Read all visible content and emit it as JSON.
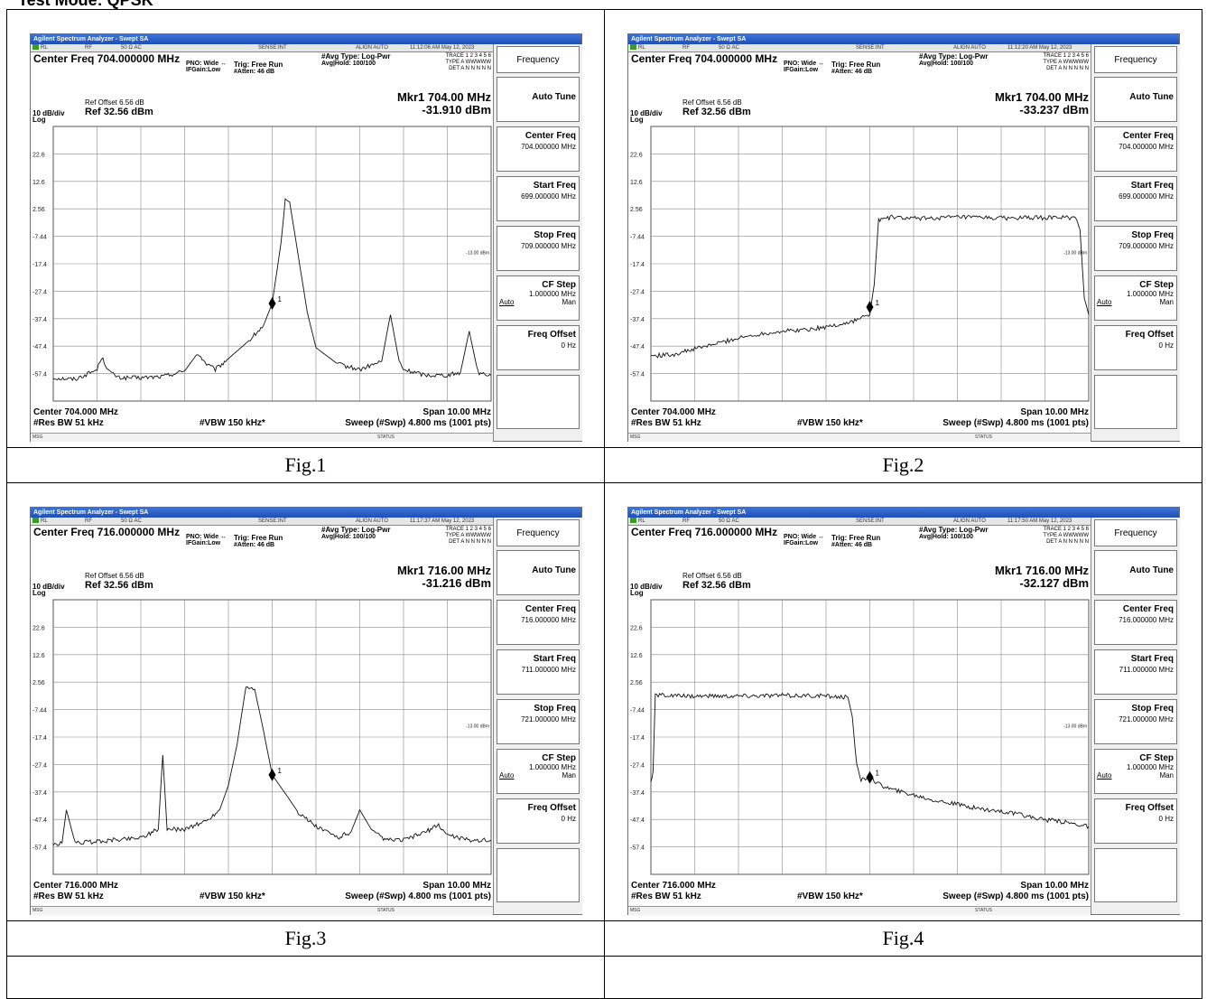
{
  "page": {
    "top_label": "Test Mode: QPSK"
  },
  "common": {
    "app_title": "Agilent Spectrum Analyzer - Swept SA",
    "toolbar": {
      "rl": "RL",
      "rf": "RF",
      "ohm": "50 Ω  AC",
      "sense": "SENSE:INT",
      "align": "ALIGN AUTO"
    },
    "pno": "PNO: Wide ↔",
    "ifgain": "IFGain:Low",
    "trig": "Trig: Free Run",
    "atten": "#Atten: 46 dB",
    "avg_type": "#Avg Type: Log-Pwr",
    "avg_hold": "Avg|Hold: 100/100",
    "trace_line": "TRACE 1 2 3 4 5 6",
    "type_line": "TYPE A WWWWW",
    "det_line": "DET A N N N N N",
    "ref_offset": "Ref Offset 6.56 dB",
    "scale": "10 dB/div",
    "ref_level": "Ref 32.56 dBm",
    "log": "Log",
    "res_bw": "#Res BW 51 kHz",
    "vbw": "#VBW 150 kHz*",
    "span": "Span 10.00 MHz",
    "sweep": "Sweep (#Swp)  4.800 ms (1001 pts)",
    "msg": "MSG",
    "status": "STATUS",
    "limit_label": "-13.00 dBm",
    "softkeys": {
      "menu": "Frequency",
      "auto_tune": "Auto Tune",
      "center_freq": "Center Freq",
      "start_freq": "Start Freq",
      "stop_freq": "Stop Freq",
      "cf_step": "CF Step",
      "cf_step_value": "1.000000 MHz",
      "auto": "Auto",
      "man": "Man",
      "freq_offset": "Freq Offset",
      "freq_offset_value": "0 Hz"
    }
  },
  "chart_data": [
    {
      "type": "line",
      "caption": "Fig.1",
      "timestamp": "11:12:06 AM May 12, 2023",
      "center_freq_header": "Center Freq 704.000000 MHz",
      "marker_freq": "Mkr1 704.00 MHz",
      "marker_level": "-31.910 dBm",
      "marker_label": "1",
      "center_label": "Center 704.000 MHz",
      "center_value": "704.000000 MHz",
      "start_value": "699.000000 MHz",
      "stop_value": "709.000000 MHz",
      "xlim": [
        699,
        709
      ],
      "ylim": [
        -67.44,
        32.56
      ],
      "y_ticks": [
        "22.6",
        "12.6",
        "2.56",
        "-7.44",
        "-17.4",
        "-27.4",
        "-37.4",
        "-47.4",
        "-57.4"
      ],
      "limit_line": -13.0,
      "marker": {
        "x": 704.0,
        "y": -31.91
      },
      "x": [
        699.0,
        699.5,
        700.0,
        700.1,
        700.3,
        700.5,
        701.0,
        701.5,
        702.0,
        702.3,
        702.5,
        702.7,
        703.0,
        703.5,
        703.8,
        704.0,
        704.2,
        704.3,
        704.4,
        704.6,
        704.8,
        705.0,
        705.5,
        706.0,
        706.5,
        706.7,
        706.9,
        707.0,
        707.5,
        708.0,
        708.3,
        708.5,
        708.7,
        709.0
      ],
      "values": [
        -59.0,
        -59.5,
        -56.0,
        -51.5,
        -57.0,
        -59.0,
        -59.0,
        -58.5,
        -56.5,
        -50.0,
        -54.0,
        -56.0,
        -52.0,
        -45.0,
        -40.0,
        -31.9,
        -10.0,
        5.5,
        5.0,
        -15.0,
        -35.0,
        -48.0,
        -54.0,
        -56.0,
        -53.0,
        -36.0,
        -53.0,
        -56.0,
        -58.0,
        -58.0,
        -57.0,
        -42.0,
        -57.0,
        -58.0
      ]
    },
    {
      "type": "line",
      "caption": "Fig.2",
      "timestamp": "11:12:20 AM May 12, 2023",
      "center_freq_header": "Center Freq 704.000000 MHz",
      "marker_freq": "Mkr1 704.00 MHz",
      "marker_level": "-33.237 dBm",
      "marker_label": "1",
      "center_label": "Center 704.000 MHz",
      "center_value": "704.000000 MHz",
      "start_value": "699.000000 MHz",
      "stop_value": "709.000000 MHz",
      "xlim": [
        699,
        709
      ],
      "ylim": [
        -67.44,
        32.56
      ],
      "y_ticks": [
        "22.6",
        "12.6",
        "2.56",
        "-7.44",
        "-17.4",
        "-27.4",
        "-37.4",
        "-47.4",
        "-57.4"
      ],
      "limit_line": -13.0,
      "marker": {
        "x": 704.0,
        "y": -33.24
      },
      "x": [
        699.0,
        699.5,
        700.0,
        700.5,
        701.0,
        701.5,
        702.0,
        702.5,
        703.0,
        703.5,
        704.0,
        704.1,
        704.2,
        704.5,
        705.0,
        706.0,
        707.0,
        708.0,
        708.5,
        708.7,
        708.8,
        708.9,
        709.0
      ],
      "values": [
        -51.0,
        -50.5,
        -48.5,
        -46.5,
        -44.5,
        -43.0,
        -42.0,
        -41.5,
        -40.5,
        -39.0,
        -36.0,
        -25.0,
        -1.5,
        -0.5,
        -1.0,
        -0.5,
        -0.8,
        -0.7,
        -0.5,
        -1.0,
        -5.0,
        -30.0,
        -36.0
      ]
    },
    {
      "type": "line",
      "caption": "Fig.3",
      "timestamp": "11:17:37 AM May 12, 2023",
      "center_freq_header": "Center Freq 716.000000 MHz",
      "marker_freq": "Mkr1 716.00 MHz",
      "marker_level": "-31.216 dBm",
      "marker_label": "1",
      "center_label": "Center 716.000 MHz",
      "center_value": "716.000000 MHz",
      "start_value": "711.000000 MHz",
      "stop_value": "721.000000 MHz",
      "xlim": [
        711,
        721
      ],
      "ylim": [
        -67.44,
        32.56
      ],
      "y_ticks": [
        "22.6",
        "12.6",
        "2.56",
        "-7.44",
        "-17.4",
        "-27.4",
        "-37.4",
        "-47.4",
        "-57.4"
      ],
      "limit_line": -13.0,
      "marker": {
        "x": 716.0,
        "y": -31.22
      },
      "x": [
        711.0,
        711.2,
        711.3,
        711.5,
        712.0,
        713.0,
        713.4,
        713.5,
        713.6,
        714.0,
        714.5,
        714.8,
        715.0,
        715.2,
        715.4,
        715.6,
        715.8,
        716.0,
        716.3,
        716.6,
        717.0,
        717.5,
        717.8,
        718.0,
        718.3,
        718.6,
        719.0,
        719.5,
        719.8,
        720.0,
        720.5,
        721.0
      ],
      "values": [
        -57.0,
        -56.0,
        -44.0,
        -56.0,
        -55.5,
        -54.0,
        -51.0,
        -24.0,
        -51.0,
        -51.0,
        -48.0,
        -44.0,
        -35.0,
        -20.0,
        1.0,
        0.0,
        -15.0,
        -31.2,
        -38.0,
        -45.0,
        -50.0,
        -54.0,
        -52.0,
        -44.0,
        -52.0,
        -55.0,
        -55.0,
        -52.0,
        -49.5,
        -53.0,
        -55.0,
        -55.0
      ]
    },
    {
      "type": "line",
      "caption": "Fig.4",
      "timestamp": "11:17:50 AM May 12, 2023",
      "center_freq_header": "Center Freq 716.000000 MHz",
      "marker_freq": "Mkr1 716.00 MHz",
      "marker_level": "-32.127 dBm",
      "marker_label": "1",
      "center_label": "Center 716.000 MHz",
      "center_value": "716.000000 MHz",
      "start_value": "711.000000 MHz",
      "stop_value": "721.000000 MHz",
      "xlim": [
        711,
        721
      ],
      "ylim": [
        -67.44,
        32.56
      ],
      "y_ticks": [
        "22.6",
        "12.6",
        "2.56",
        "-7.44",
        "-17.4",
        "-27.4",
        "-37.4",
        "-47.4",
        "-57.4"
      ],
      "limit_line": -13.0,
      "marker": {
        "x": 716.0,
        "y": -32.13
      },
      "x": [
        711.0,
        711.05,
        711.1,
        711.2,
        711.5,
        712.0,
        713.0,
        714.0,
        715.0,
        715.5,
        715.6,
        715.7,
        715.8,
        716.0,
        716.2,
        716.5,
        717.0,
        717.5,
        718.0,
        718.5,
        719.0,
        719.5,
        720.0,
        720.5,
        721.0
      ],
      "values": [
        -34.0,
        -30.0,
        -2.5,
        -2.0,
        -2.5,
        -2.5,
        -2.5,
        -2.3,
        -2.5,
        -3.0,
        -10.0,
        -28.0,
        -33.0,
        -32.1,
        -34.5,
        -36.5,
        -38.5,
        -40.5,
        -42.0,
        -43.5,
        -44.5,
        -46.0,
        -47.5,
        -48.5,
        -50.0
      ]
    }
  ]
}
